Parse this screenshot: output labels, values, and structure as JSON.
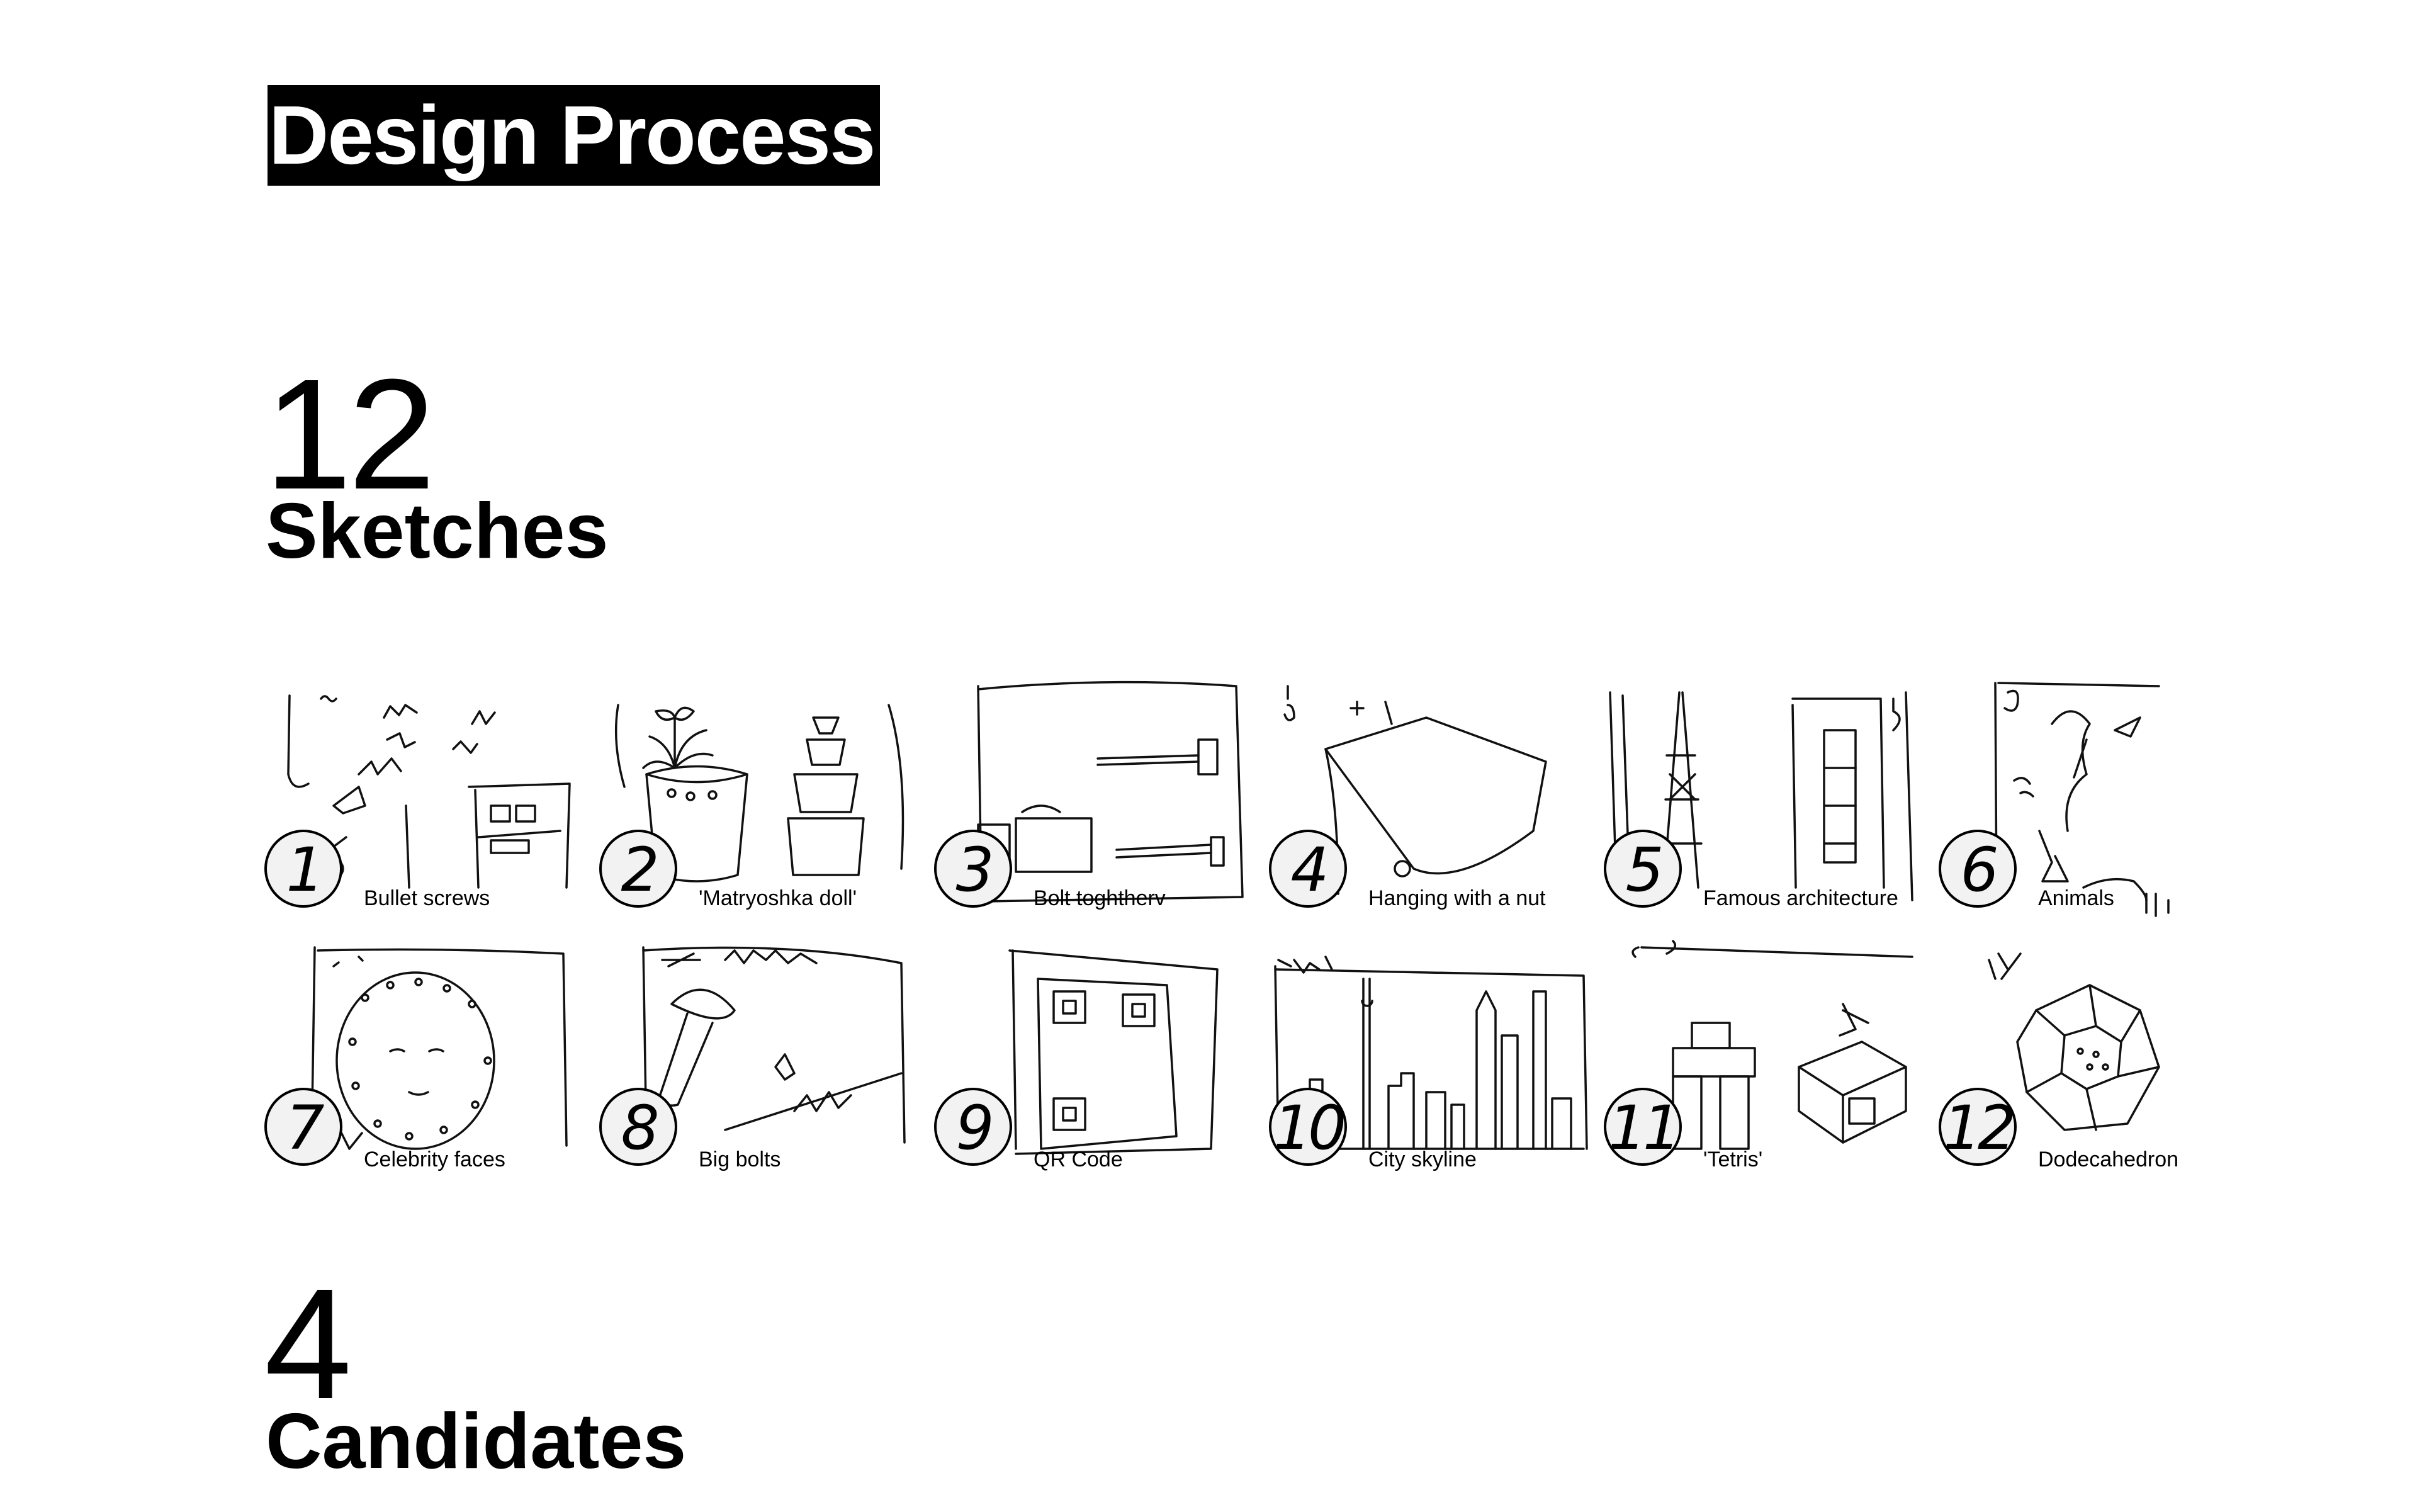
{
  "page": {
    "title": "Design Process"
  },
  "sketches_section": {
    "count": "12",
    "label": "Sketches"
  },
  "candidates_section": {
    "count": "4",
    "label": "Candidates"
  },
  "sketches": [
    {
      "number": "1",
      "label": "Bullet screws"
    },
    {
      "number": "2",
      "label": "'Matryoshka doll'"
    },
    {
      "number": "3",
      "label": "Bolt toghtherv"
    },
    {
      "number": "4",
      "label": "Hanging with a nut"
    },
    {
      "number": "5",
      "label": "Famous architecture"
    },
    {
      "number": "6",
      "label": "Animals"
    },
    {
      "number": "7",
      "label": "Celebrity faces"
    },
    {
      "number": "8",
      "label": "Big bolts"
    },
    {
      "number": "9",
      "label": "QR Code"
    },
    {
      "number": "10",
      "label": "City skyline"
    },
    {
      "number": "11",
      "label": "'Tetris'"
    },
    {
      "number": "12",
      "label": "Dodecahedron"
    }
  ],
  "colors": {
    "text": "#000000",
    "title_background": "#000000",
    "title_text": "#ffffff",
    "circle_fill": "#f2f2f2"
  }
}
